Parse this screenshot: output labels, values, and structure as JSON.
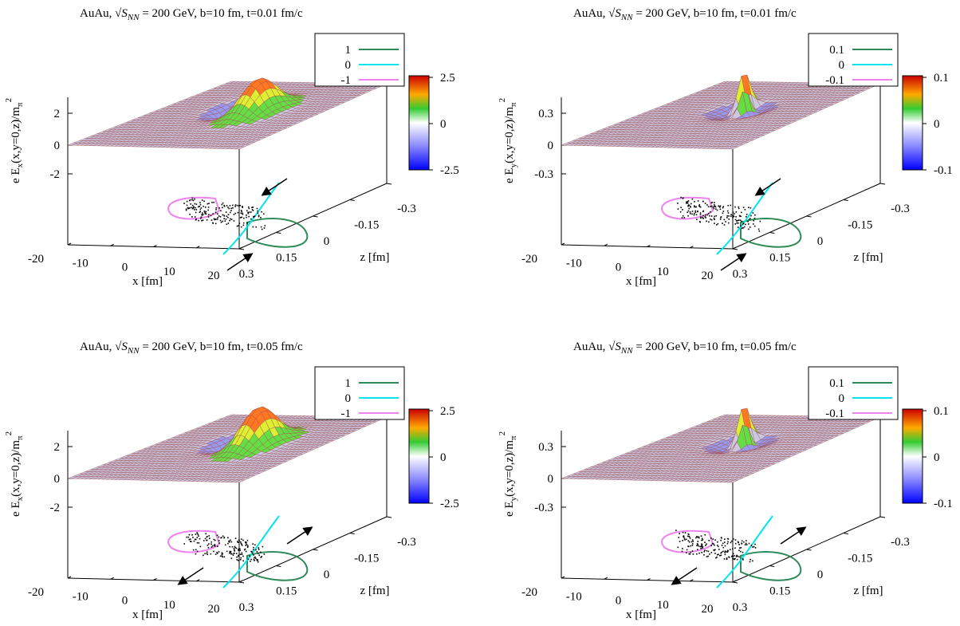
{
  "figure": {
    "x_label": "x [fm]",
    "z_label": "z [fm]",
    "x_ticks": [
      "-20",
      "-10",
      "0",
      "10",
      "20"
    ],
    "z_ticks": [
      "-0.3",
      "-0.15",
      "0",
      "0.15",
      "0.3"
    ],
    "title_prefix": "AuAu,",
    "title_sqrt": "√",
    "title_S": "S",
    "title_sub": "NN",
    "title_rest": " = 200 GeV,  b=10 fm,  "
  },
  "colors": {
    "contour_high": "#2e8b57",
    "contour_zero": "#00e5ee",
    "contour_low": "#ee82ee",
    "mesh_line": "#a05050",
    "flat_fill": "#cbc8e2"
  },
  "chart_data": [
    {
      "type": "surface",
      "title_time": "t=0.01 fm/c",
      "ylabel_component": "x",
      "z_ticks": [
        "2",
        "0",
        "-2"
      ],
      "colorbar_ticks": [
        "2.5",
        "0",
        "-2.5"
      ],
      "zlim": [
        -2.5,
        2.5
      ],
      "legend": [
        "1",
        "0",
        "-1"
      ],
      "arrows": "inward"
    },
    {
      "type": "surface",
      "title_time": "t=0.01 fm/c",
      "ylabel_component": "y",
      "z_ticks": [
        "0.3",
        "0",
        "-0.3"
      ],
      "colorbar_ticks": [
        "0.1",
        "0",
        "-0.1"
      ],
      "zlim": [
        -0.3,
        0.3
      ],
      "legend": [
        "0.1",
        "0",
        "-0.1"
      ],
      "arrows": "inward"
    },
    {
      "type": "surface",
      "title_time": "t=0.05 fm/c",
      "ylabel_component": "x",
      "z_ticks": [
        "2",
        "0",
        "-2"
      ],
      "colorbar_ticks": [
        "2.5",
        "0",
        "-2.5"
      ],
      "zlim": [
        -2.5,
        2.5
      ],
      "legend": [
        "1",
        "0",
        "-1"
      ],
      "arrows": "outward"
    },
    {
      "type": "surface",
      "title_time": "t=0.05 fm/c",
      "ylabel_component": "y",
      "z_ticks": [
        "0.3",
        "0",
        "-0.3"
      ],
      "colorbar_ticks": [
        "0.1",
        "0",
        "-0.1"
      ],
      "zlim": [
        -0.3,
        0.3
      ],
      "legend": [
        "0.1",
        "0",
        "-0.1"
      ],
      "arrows": "outward"
    }
  ]
}
